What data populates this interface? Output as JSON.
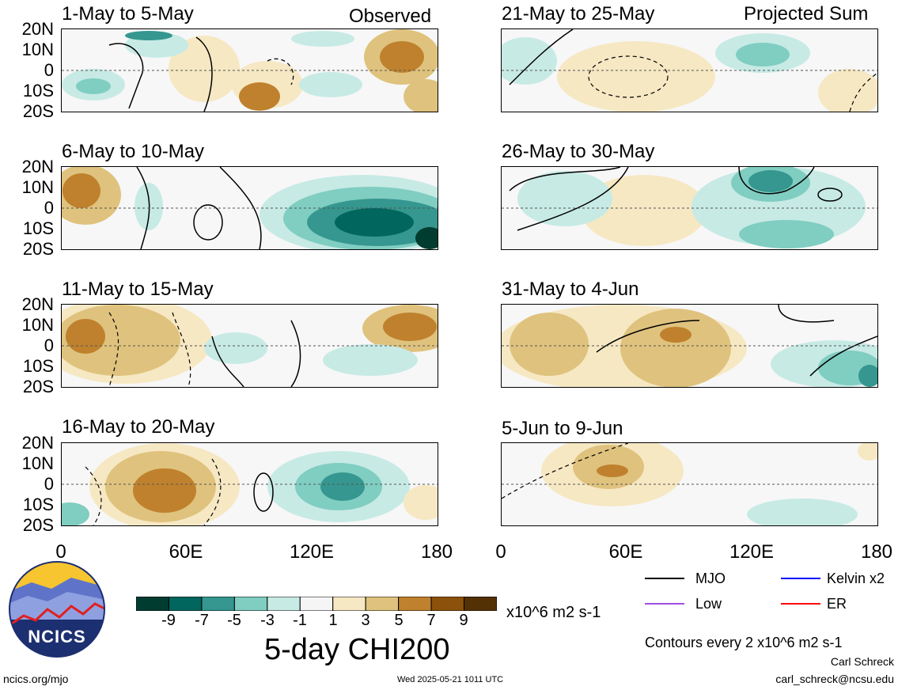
{
  "panels": {
    "left": [
      {
        "title": "1-May to 5-May",
        "tag": "Observed"
      },
      {
        "title": "6-May to 10-May",
        "tag": ""
      },
      {
        "title": "11-May to 15-May",
        "tag": ""
      },
      {
        "title": "16-May to 20-May",
        "tag": ""
      }
    ],
    "right": [
      {
        "title": "21-May to 25-May",
        "tag": "Projected Sum"
      },
      {
        "title": "26-May to 30-May",
        "tag": ""
      },
      {
        "title": "31-May to 4-Jun",
        "tag": ""
      },
      {
        "title": "5-Jun to 9-Jun",
        "tag": ""
      }
    ]
  },
  "lat_labels": [
    "20N",
    "10N",
    "0",
    "10S",
    "20S"
  ],
  "lon_labels": [
    "0",
    "60E",
    "120E",
    "180"
  ],
  "colorbar": {
    "ticks": [
      "-9",
      "-7",
      "-5",
      "-3",
      "-1",
      "1",
      "3",
      "5",
      "7",
      "9"
    ],
    "units": "x10^6 m2 s-1",
    "colors": [
      "#003c30",
      "#01665e",
      "#35978f",
      "#80cdc1",
      "#c7eae5",
      "#f5f5f5",
      "#f6e8c3",
      "#dfc27d",
      "#bf812d",
      "#8c510a",
      "#543005"
    ]
  },
  "main_title": "5-day CHI200",
  "legend": {
    "items": [
      {
        "label": "MJO",
        "color": "#000000"
      },
      {
        "label": "Kelvin x2",
        "color": "#0000ff"
      },
      {
        "label": "Low",
        "color": "#a050e0"
      },
      {
        "label": "ER",
        "color": "#ff0000"
      }
    ],
    "contour_note": "Contours every 2 x10^6 m2 s-1"
  },
  "logo": {
    "text": "NCICS"
  },
  "footer": {
    "url": "ncics.org/mjo",
    "timestamp": "Wed 2025-05-21 1011 UTC",
    "author": "Carl Schreck",
    "email": "carl_schreck@ncsu.edu"
  }
}
